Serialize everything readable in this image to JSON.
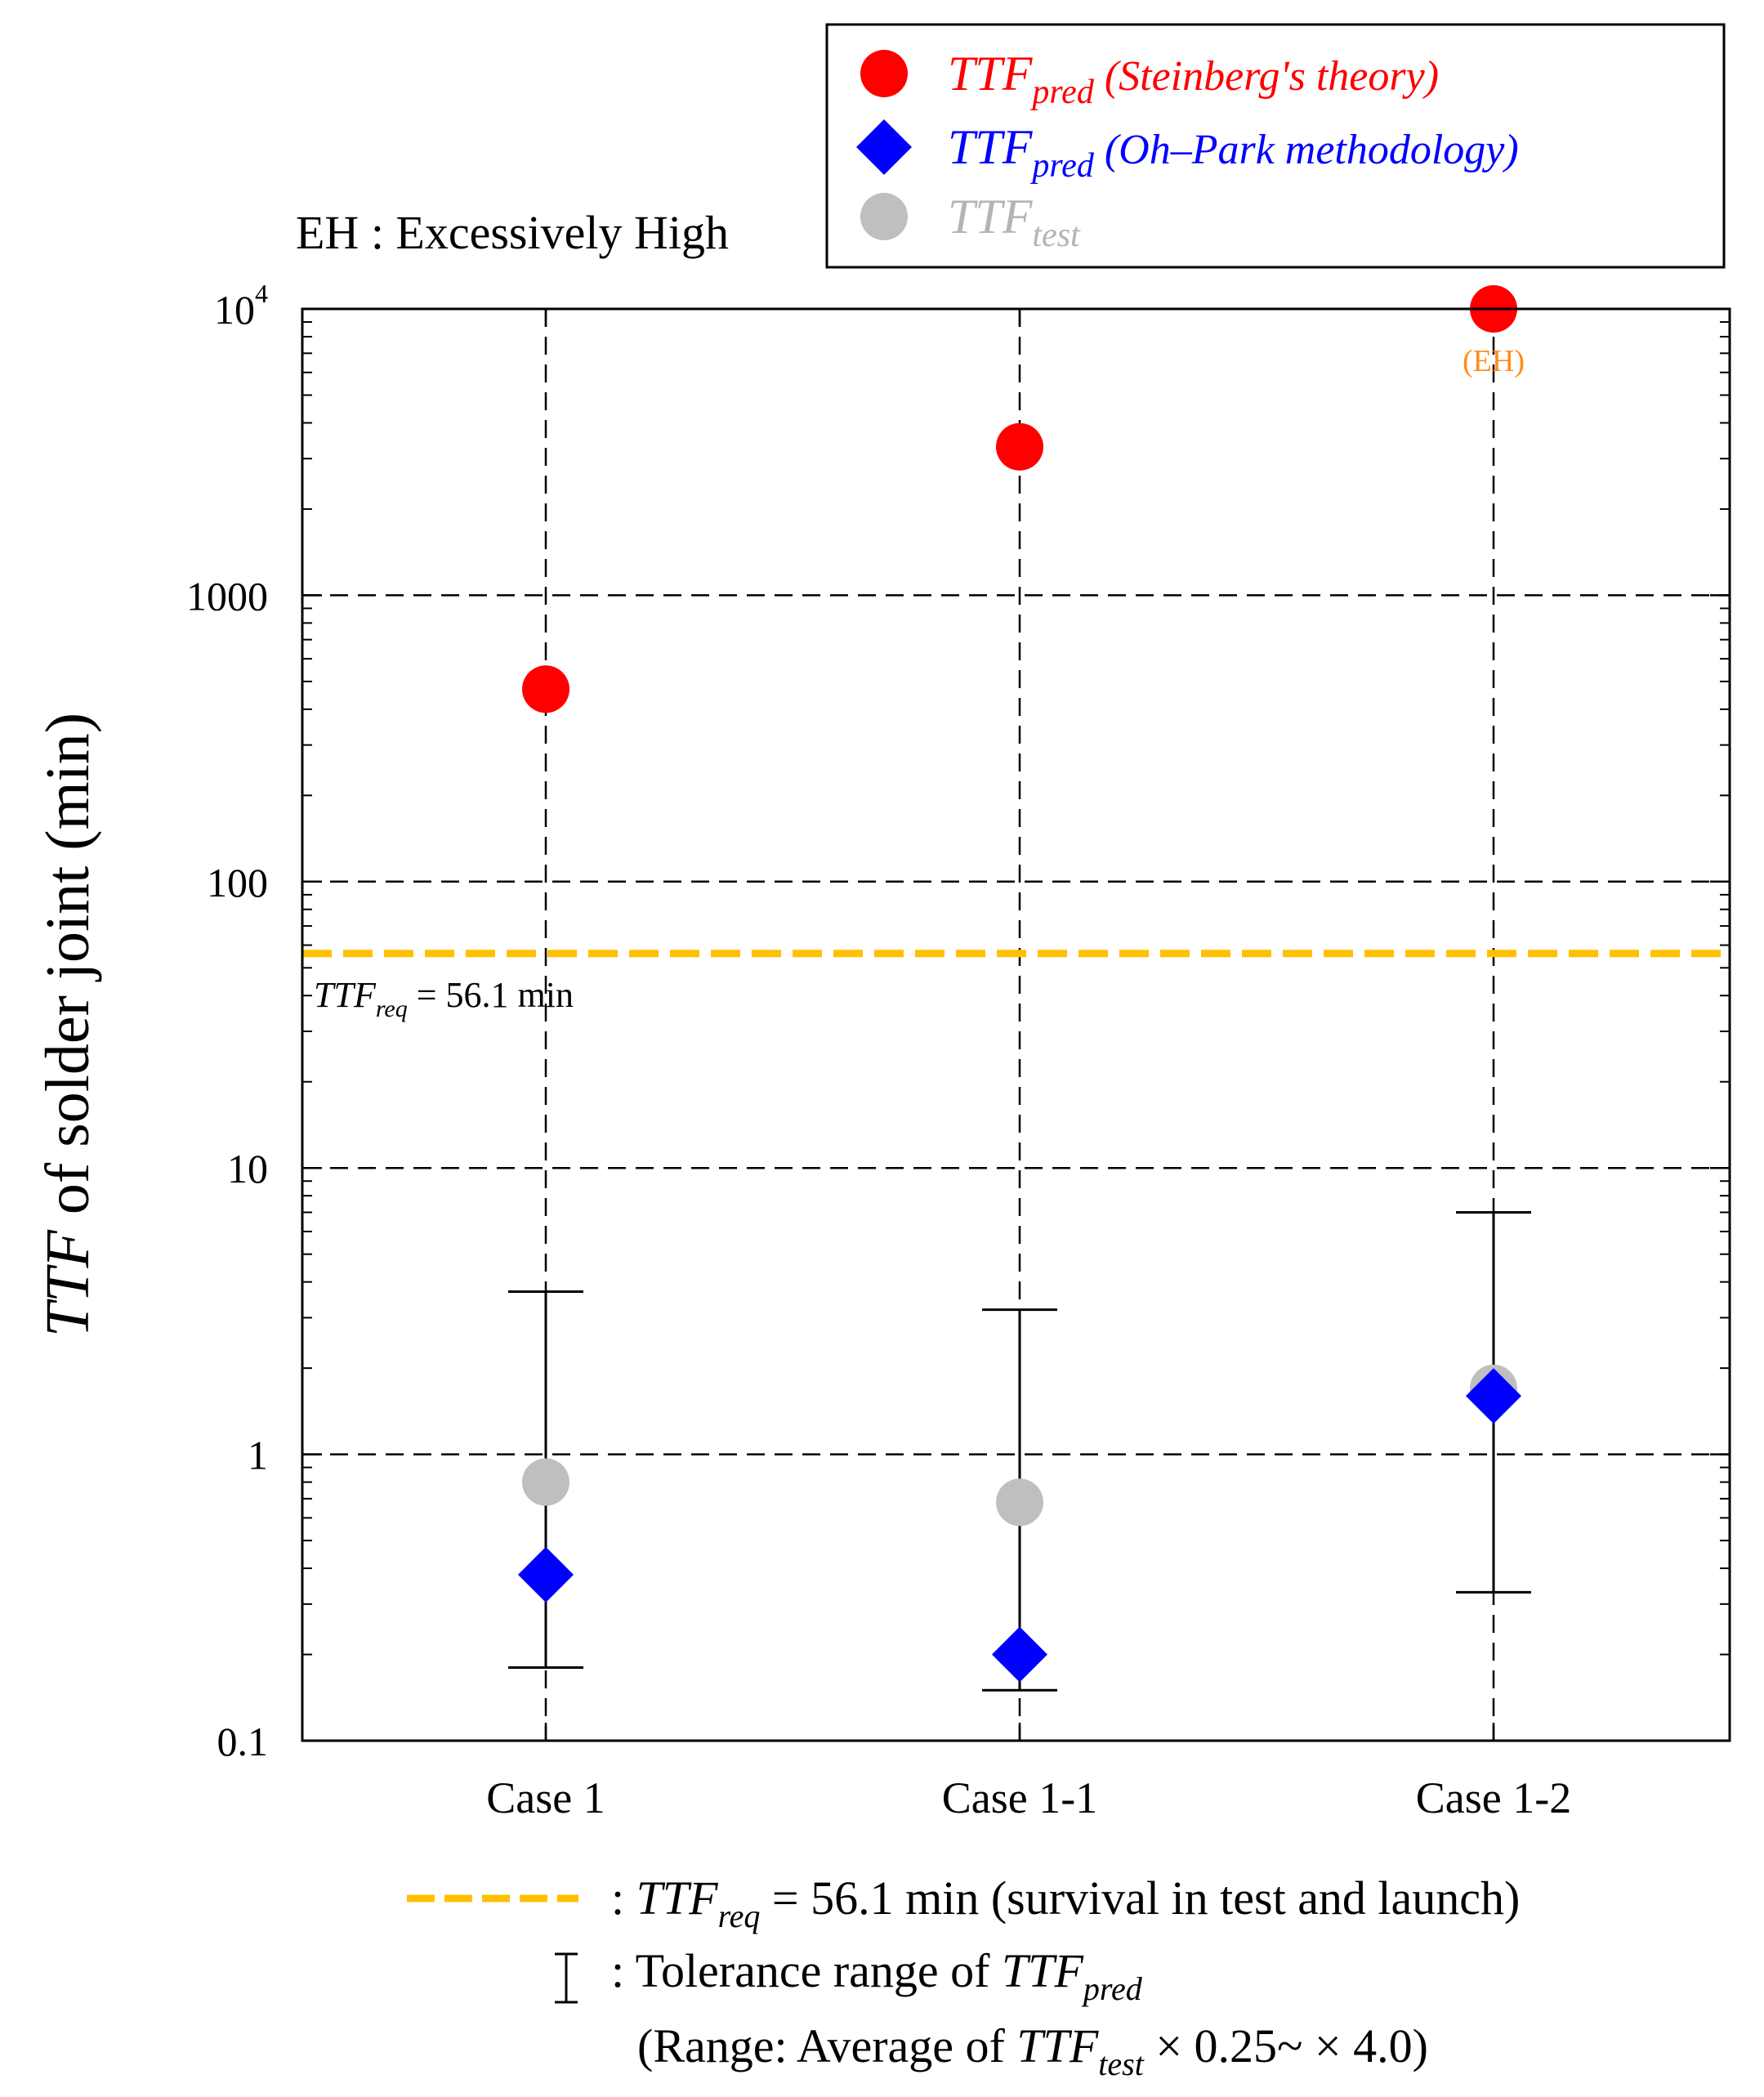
{
  "chart_data": {
    "type": "scatter",
    "yscale": "log",
    "ylim": [
      0.1,
      10000
    ],
    "categories": [
      "Case 1",
      "Case 1-1",
      "Case 1-2"
    ],
    "ylabel": {
      "italic": "TTF",
      "rest": " of solder joint (min)"
    },
    "yticks": [
      {
        "value": 0.1,
        "label": "0.1"
      },
      {
        "value": 1,
        "label": "1"
      },
      {
        "value": 10,
        "label": "10"
      },
      {
        "value": 100,
        "label": "100"
      },
      {
        "value": 1000,
        "label": "1000"
      },
      {
        "value": 10000,
        "label": "10",
        "sup": "4"
      }
    ],
    "series": [
      {
        "name": "TTF_pred (Steinberg's theory)",
        "marker": "circle",
        "color": "#ff0000",
        "values": [
          470,
          3300,
          10000
        ]
      },
      {
        "name": "TTF_pred (Oh–Park methodology)",
        "marker": "diamond",
        "color": "#0000ff",
        "values": [
          0.38,
          0.2,
          1.6
        ]
      },
      {
        "name": "TTF_test",
        "marker": "circle",
        "color": "#bfbfbf",
        "values": [
          0.8,
          0.68,
          1.7
        ]
      }
    ],
    "error_bars": [
      {
        "low": 0.18,
        "high": 3.7
      },
      {
        "low": 0.15,
        "high": 3.2
      },
      {
        "low": 0.33,
        "high": 7.0
      }
    ],
    "reference_line": {
      "value": 56.1,
      "color": "#ffc000",
      "label_sym": "TTF",
      "label_sub": "req",
      "label_rest": " = 56.1 min"
    },
    "annotations": {
      "eh_top": "EH : Excessively High",
      "eh_point": "(EH)",
      "eh_color": "#ff8c1a"
    },
    "legend": {
      "position": "top-right",
      "entries": [
        {
          "sym": "TTF",
          "sub": "pred",
          "desc": " (Steinberg's theory)",
          "color": "#ff0000"
        },
        {
          "sym": "TTF",
          "sub": "pred",
          "desc": " (Oh–Park methodology)",
          "color": "#0000ff"
        },
        {
          "sym": "TTF",
          "sub": "test",
          "desc": "",
          "color": "#b4b4b4"
        }
      ]
    },
    "notes": {
      "line_text": {
        "pre": ": ",
        "sym": "TTF",
        "sub": "req",
        "rest": " = 56.1 min (survival in test and launch)"
      },
      "range_text": {
        "pre": ": Tolerance range of ",
        "sym": "TTF",
        "sub": "pred"
      },
      "range_detail": {
        "pre": "(Range: Average of ",
        "sym": "TTF",
        "sub": "test",
        "rest": " × 0.25~ × 4.0)"
      }
    }
  }
}
